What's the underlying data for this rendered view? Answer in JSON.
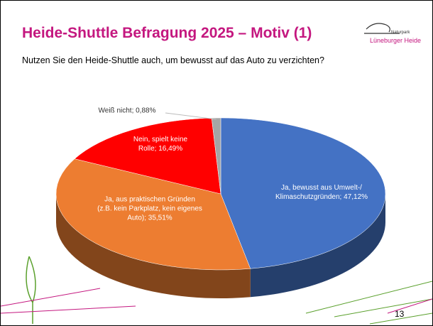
{
  "chart_data": {
    "type": "pie",
    "title": "Heide-Shuttle Befragung 2025 – Motiv (1)",
    "subtitle": "Nutzen Sie den Heide-Shuttle auch, um bewusst auf das Auto zu verzichten?",
    "values": [
      47.12,
      35.51,
      16.49,
      0.88
    ],
    "value_labels": [
      "Ja, bewusst aus Umwelt-/ Klimaschutzgründen; 47,12%",
      "Ja, aus praktischen Gründen (z.B. kein Parkplatz, kein eigenes Auto); 35,51%",
      "Nein, spielt keine Rolle; 16,49%",
      "Weiß nicht; 0,88%"
    ],
    "colors": [
      "#4472c4",
      "#ed7d31",
      "#ff0000",
      "#a5a5a5"
    ]
  },
  "logo": {
    "line1": "Naturpark",
    "line2": "Lüneburger Heide"
  },
  "page_number": "13"
}
